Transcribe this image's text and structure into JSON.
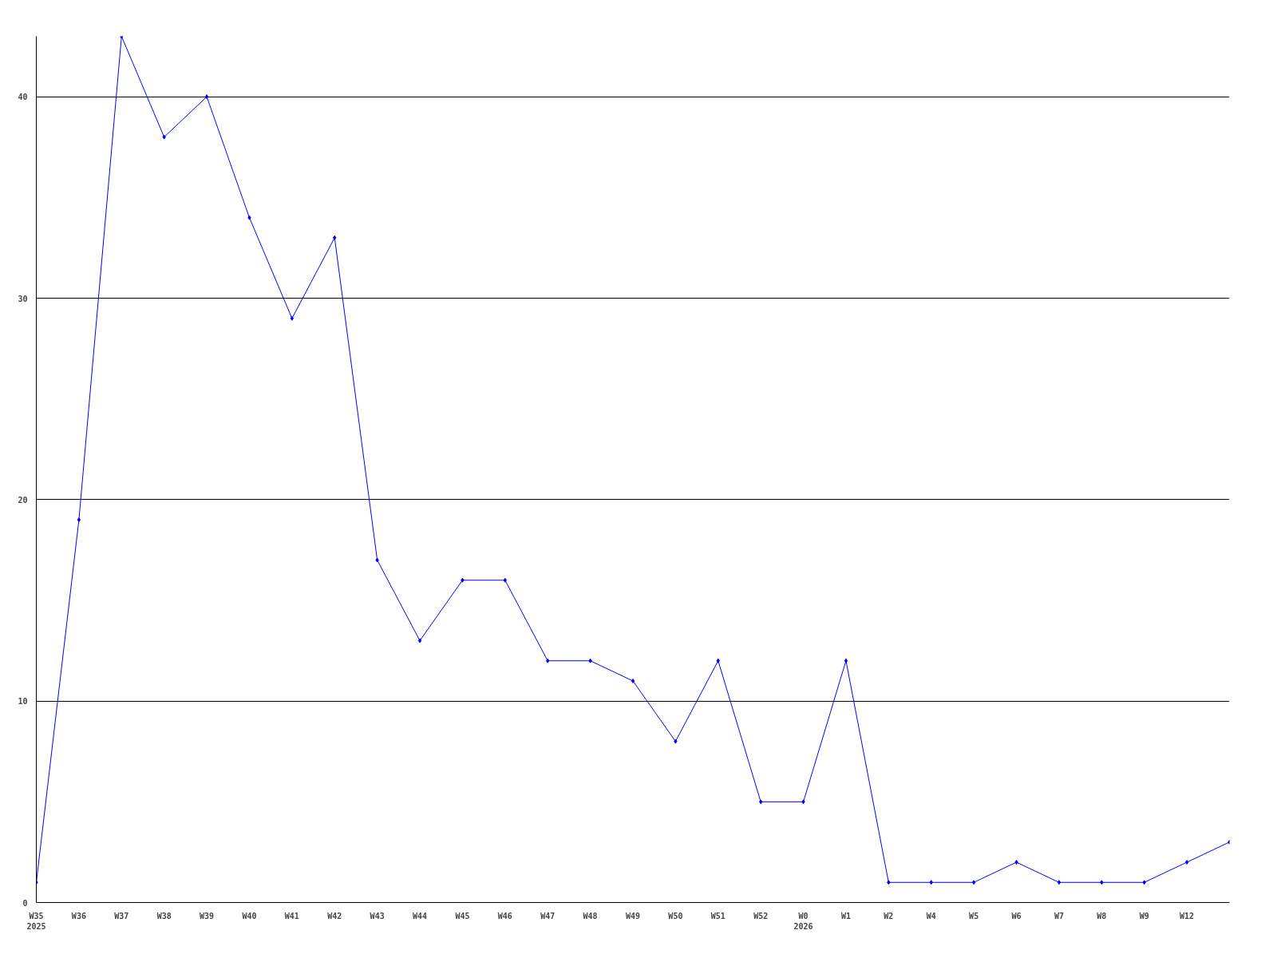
{
  "chart_data": {
    "type": "line",
    "categories": [
      "W35\n2025",
      "W36",
      "W37",
      "W38",
      "W39",
      "W40",
      "W41",
      "W42",
      "W43",
      "W44",
      "W45",
      "W46",
      "W47",
      "W48",
      "W49",
      "W50",
      "W51",
      "W52",
      "W0\n2026",
      "W1",
      "W2",
      "W4",
      "W5",
      "W6",
      "W7",
      "W8",
      "W9",
      "W12",
      null
    ],
    "series": [
      {
        "color": "#0000ff",
        "values": [
          1,
          19,
          43,
          38,
          40,
          34,
          29,
          33,
          17,
          13,
          16,
          16,
          12,
          12,
          11,
          8,
          12,
          5,
          5,
          12,
          1,
          1,
          1,
          2,
          1,
          1,
          1,
          2,
          3
        ]
      }
    ],
    "ylim": [
      0,
      43
    ],
    "yticks": [
      0,
      10,
      20,
      30,
      40
    ],
    "grid": "y",
    "marker": "diamond",
    "line_style": "solid"
  }
}
